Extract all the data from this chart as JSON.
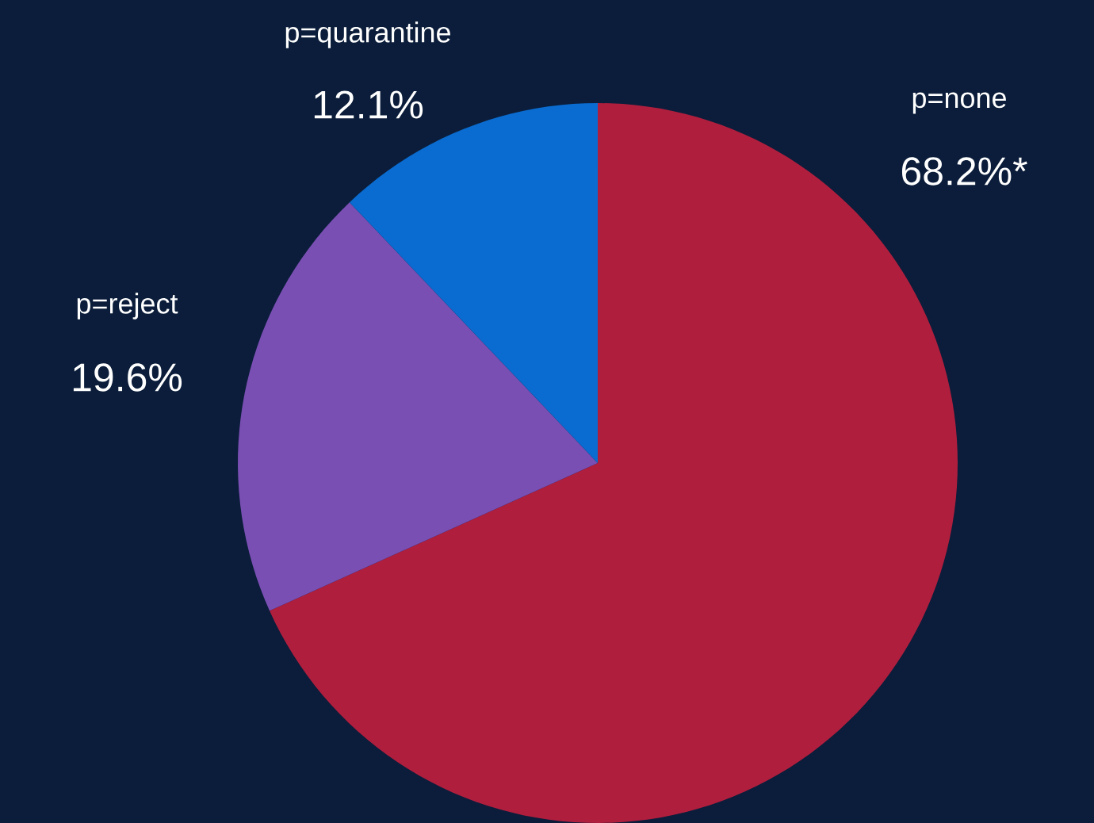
{
  "chart_data": {
    "type": "pie",
    "categories": [
      "p=none",
      "p=reject",
      "p=quarantine"
    ],
    "values": [
      68.2,
      19.6,
      12.1
    ],
    "value_labels": [
      "68.2%*",
      "19.6%",
      "12.1%"
    ],
    "colors": [
      "#b01e3e",
      "#7a4fb4",
      "#0a6cd0"
    ]
  }
}
